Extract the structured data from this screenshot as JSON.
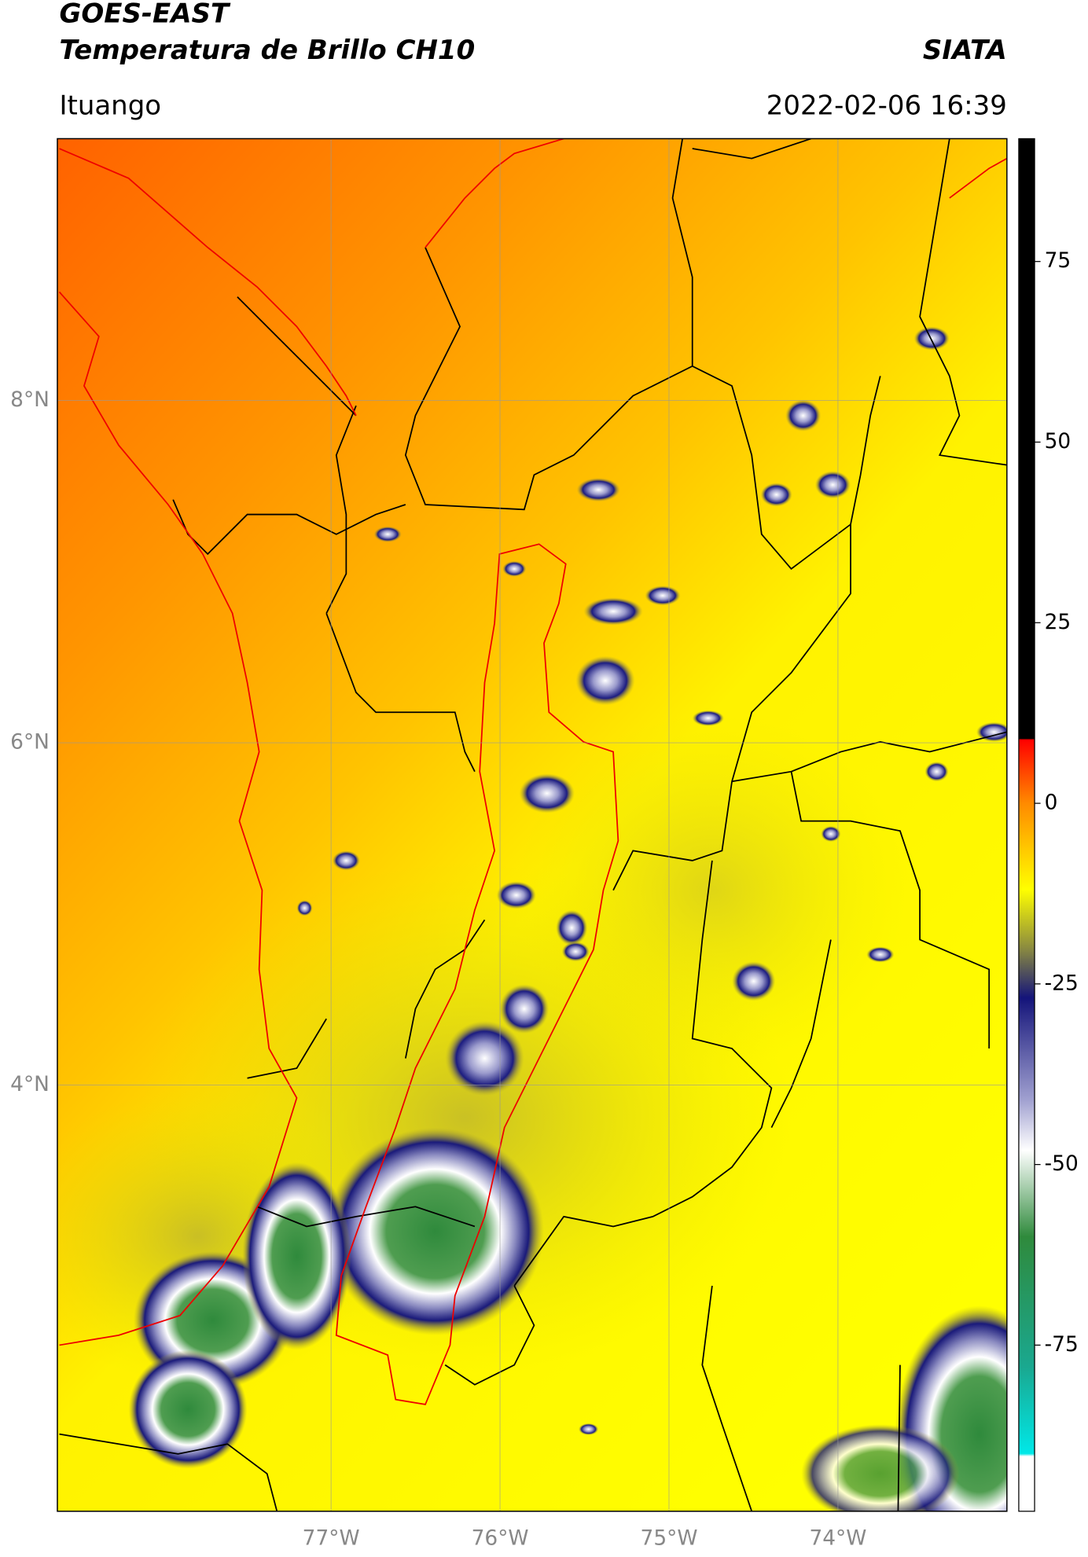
{
  "header": {
    "title": "GOES-EAST",
    "subtitle": "Temperatura de Brillo CH10",
    "source": "SIATA",
    "location": "Ituango",
    "datetime": "2022-02-06 16:39"
  },
  "map": {
    "xlim": [
      -78.62,
      -73.0
    ],
    "ylim": [
      1.51,
      9.53
    ],
    "grid": true,
    "xticks": [
      {
        "value": -77,
        "label": "77°W"
      },
      {
        "value": -76,
        "label": "76°W"
      },
      {
        "value": -75,
        "label": "75°W"
      },
      {
        "value": -74,
        "label": "74°W"
      }
    ],
    "yticks": [
      {
        "value": 8,
        "label": "8°N"
      },
      {
        "value": 6,
        "label": "6°N"
      },
      {
        "value": 4,
        "label": "4°N"
      }
    ]
  },
  "colorbar": {
    "clim": [
      -98,
      92
    ],
    "ticks": [
      75,
      50,
      25,
      0,
      -25,
      -50,
      -75
    ]
  }
}
